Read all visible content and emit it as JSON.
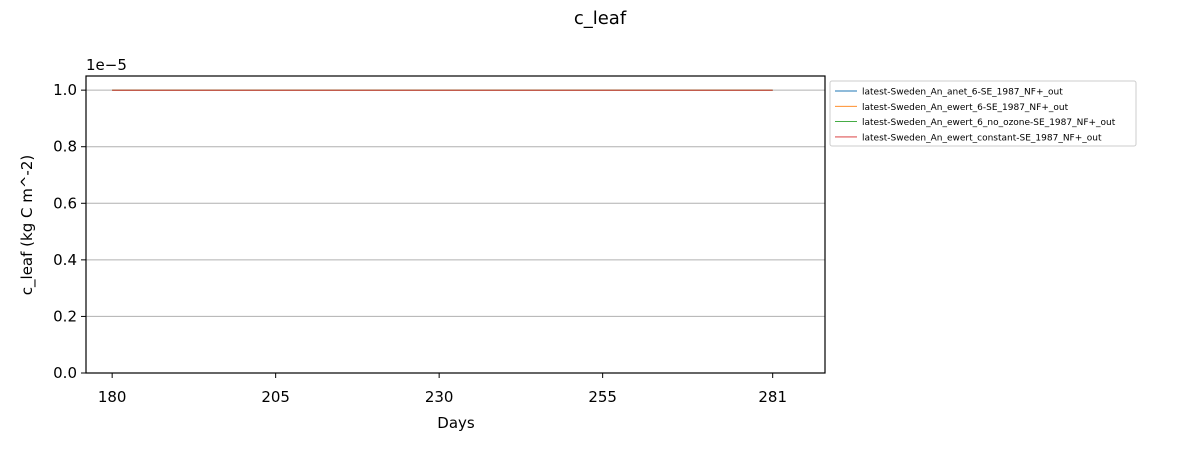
{
  "chart_data": {
    "type": "line",
    "title": "c_leaf",
    "xlabel": "Days",
    "ylabel": "c_leaf (kg C m^-2)",
    "y_offset_label": "1e−5",
    "xlim": [
      176,
      289
    ],
    "ylim": [
      0,
      1.05
    ],
    "x_ticks": [
      180,
      205,
      230,
      255,
      281
    ],
    "y_ticks": [
      "0.0",
      "0.2",
      "0.4",
      "0.6",
      "0.8",
      "1.0"
    ],
    "grid": "horizontal",
    "legend_position": "outside-right",
    "series": [
      {
        "name": "latest-Sweden_An_anet_6-SE_1987_NF+_out",
        "color": "#1f77b4",
        "x": [
          180,
          281
        ],
        "y": [
          1.0,
          1.0
        ]
      },
      {
        "name": "latest-Sweden_An_ewert_6-SE_1987_NF+_out",
        "color": "#ff7f0e",
        "x": [
          180,
          281
        ],
        "y": [
          1.0,
          1.0
        ]
      },
      {
        "name": "latest-Sweden_An_ewert_6_no_ozone-SE_1987_NF+_out",
        "color": "#2ca02c",
        "x": [
          180,
          281
        ],
        "y": [
          1.0,
          1.0
        ]
      },
      {
        "name": "latest-Sweden_An_ewert_constant-SE_1987_NF+_out",
        "color": "#d62728",
        "x": [
          180,
          281
        ],
        "y": [
          1.0,
          1.0
        ]
      }
    ]
  }
}
